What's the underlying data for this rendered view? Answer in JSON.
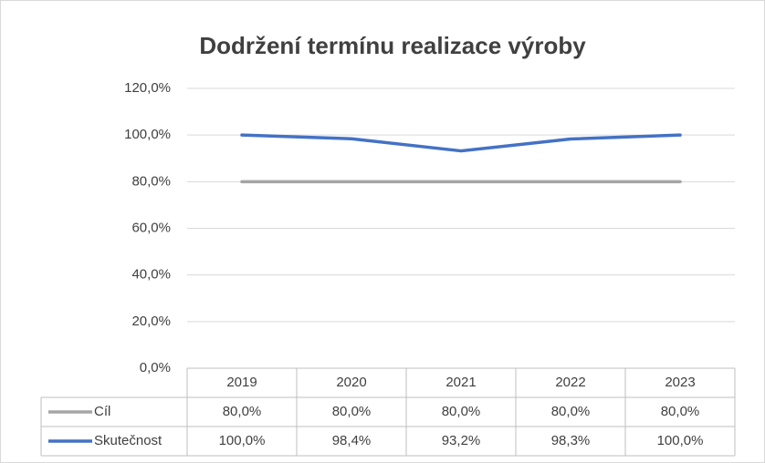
{
  "chart_data": {
    "type": "line",
    "title": "Dodržení termínu realizace výroby",
    "categories": [
      "2019",
      "2020",
      "2021",
      "2022",
      "2023"
    ],
    "series": [
      {
        "name": "Cíl",
        "color": "#a5a5a5",
        "values": [
          80,
          80,
          80,
          80,
          80
        ],
        "value_labels": [
          "80,0%",
          "80,0%",
          "80,0%",
          "80,0%",
          "80,0%"
        ]
      },
      {
        "name": "Skutečnost",
        "color": "#4472c4",
        "values": [
          100,
          98.4,
          93.2,
          98.3,
          100
        ],
        "value_labels": [
          "100,0%",
          "98,4%",
          "93,2%",
          "98,3%",
          "100,0%"
        ]
      }
    ],
    "ylim": [
      0,
      120
    ],
    "yticks": [
      {
        "value": 0,
        "label": "0,0%"
      },
      {
        "value": 20,
        "label": "20,0%"
      },
      {
        "value": 40,
        "label": "40,0%"
      },
      {
        "value": 60,
        "label": "60,0%"
      },
      {
        "value": 80,
        "label": "80,0%"
      },
      {
        "value": 100,
        "label": "100,0%"
      },
      {
        "value": 120,
        "label": "120,0%"
      }
    ],
    "grid": true,
    "data_table": true
  }
}
